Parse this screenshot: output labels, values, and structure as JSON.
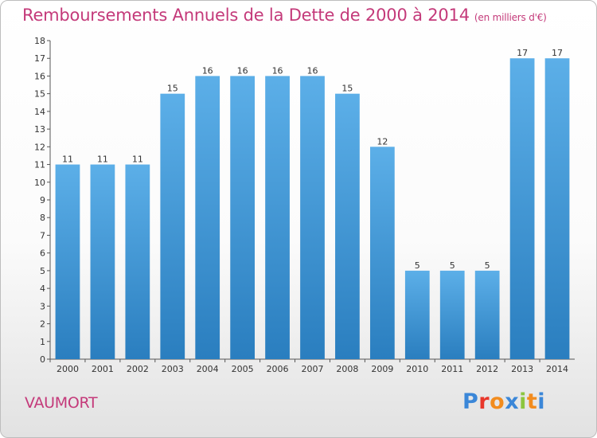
{
  "chart_data": {
    "type": "bar",
    "title": "Remboursements Annuels de la Dette de 2000 à 2014",
    "unit_note": "(en milliers d'€)",
    "categories": [
      "2000",
      "2001",
      "2002",
      "2003",
      "2004",
      "2005",
      "2006",
      "2007",
      "2008",
      "2009",
      "2010",
      "2011",
      "2012",
      "2013",
      "2014"
    ],
    "values": [
      11,
      11,
      11,
      15,
      16,
      16,
      16,
      16,
      15,
      12,
      5,
      5,
      5,
      17,
      17
    ],
    "ylim": [
      0,
      18
    ],
    "yticks": [
      0,
      1,
      2,
      3,
      4,
      5,
      6,
      7,
      8,
      9,
      10,
      11,
      12,
      13,
      14,
      15,
      16,
      17,
      18
    ],
    "xlabel": "",
    "ylabel": "",
    "grid": false,
    "bar_color_top": "#5cafe8",
    "bar_color_bottom": "#2a7ebf"
  },
  "footer": {
    "commune": "VAUMORT",
    "logo_letters": [
      "P",
      "r",
      "o",
      "x",
      "i",
      "t",
      "i"
    ],
    "logo_colors": [
      "#3b87d8",
      "#e8372b",
      "#f28c1e",
      "#3b87d8",
      "#8cc63f",
      "#f28c1e",
      "#3b87d8"
    ]
  }
}
